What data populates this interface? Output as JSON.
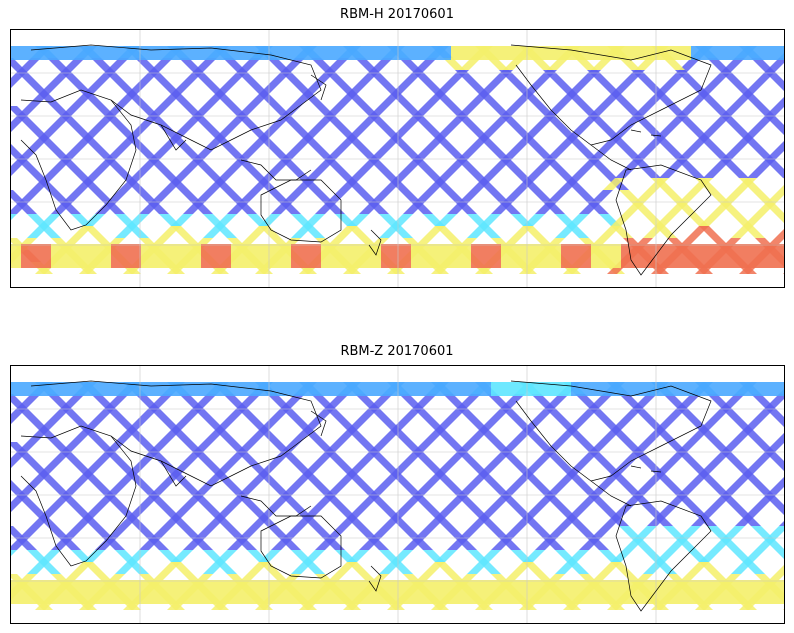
{
  "maps": [
    {
      "title": "RBM-H 20170601",
      "colormap": "jet",
      "high_regions": [
        "southern-ocean band",
        "north pacific high latitudes",
        "south atlantic"
      ]
    },
    {
      "title": "RBM-Z 20170601",
      "colormap": "jet",
      "high_regions": [
        "southern-ocean band",
        "south atlantic"
      ]
    }
  ],
  "colors": {
    "low": "#5b5ef0",
    "mid_low": "#4aa8ff",
    "mid": "#5ee6ff",
    "mid_high": "#f4f06a",
    "high": "#f07050",
    "coast": "#000000",
    "grid": "#c8c8c8"
  },
  "gridlines": true
}
